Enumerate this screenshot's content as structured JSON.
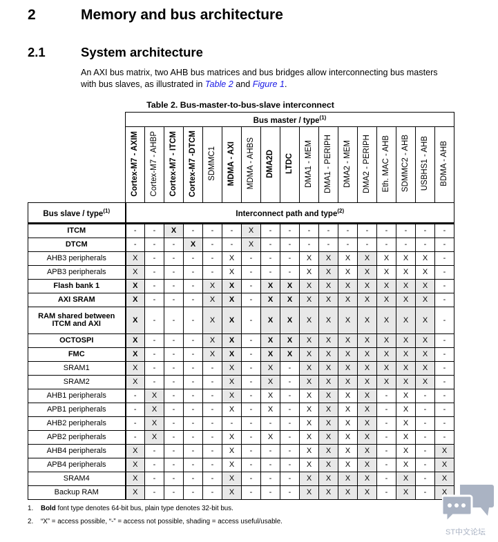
{
  "section": {
    "number": "2",
    "title": "Memory and bus architecture"
  },
  "subsection": {
    "number": "2.1",
    "title": "System architecture"
  },
  "paragraph": {
    "text_before": "An AXI bus matrix, two AHB bus matrices and bus bridges allow interconnecting bus masters with bus slaves, as illustrated in ",
    "link1": "Table 2",
    "text_mid": " and ",
    "link2": "Figure 1",
    "text_after": "."
  },
  "table": {
    "caption": "Table 2. Bus-master-to-bus-slave interconnect",
    "master_header": "Bus master / type",
    "master_header_note": "(1)",
    "slave_header": "Bus slave / type",
    "slave_header_note": "(1)",
    "path_header": "Interconnect path and type",
    "path_header_note": "(2)",
    "shade_color": "#e8e8e8",
    "masters": [
      {
        "label": "Cortex-M7 - AXIM",
        "bold": true
      },
      {
        "label": "Cortex-M7 - AHBP",
        "bold": false
      },
      {
        "label": "Cortex-M7 - ITCM",
        "bold": true
      },
      {
        "label": "Cortex-M7 -DTCM",
        "bold": true
      },
      {
        "label": "SDMMC1",
        "bold": false
      },
      {
        "label": "MDMA - AXI",
        "bold": true
      },
      {
        "label": "MDMA - AHBS",
        "bold": false
      },
      {
        "label": "DMA2D",
        "bold": true
      },
      {
        "label": "LTDC",
        "bold": true
      },
      {
        "label": "DMA1 - MEM",
        "bold": false
      },
      {
        "label": "DMA1 - PERIPH",
        "bold": false
      },
      {
        "label": "DMA2 - MEM",
        "bold": false
      },
      {
        "label": "DMA2 - PERIPH",
        "bold": false
      },
      {
        "label": "Eth. MAC - AHB",
        "bold": false
      },
      {
        "label": "SDMMC2 - AHB",
        "bold": false
      },
      {
        "label": "USBHS1 - AHB",
        "bold": false
      },
      {
        "label": "BDMA - AHB",
        "bold": false
      }
    ],
    "rows": [
      {
        "slave": "ITCM",
        "bold": true,
        "cells": [
          "-",
          "-",
          "X",
          "-",
          "-",
          "-",
          "X",
          "-",
          "-",
          "-",
          "-",
          "-",
          "-",
          "-",
          "-",
          "-",
          "-"
        ],
        "shaded": [
          2,
          6
        ]
      },
      {
        "slave": "DTCM",
        "bold": true,
        "cells": [
          "-",
          "-",
          "-",
          "X",
          "-",
          "-",
          "X",
          "-",
          "-",
          "-",
          "-",
          "-",
          "-",
          "-",
          "-",
          "-",
          "-"
        ],
        "shaded": [
          3,
          6
        ]
      },
      {
        "slave": "AHB3 peripherals",
        "bold": false,
        "cells": [
          "X",
          "-",
          "-",
          "-",
          "-",
          "X",
          "-",
          "-",
          "-",
          "X",
          "X",
          "X",
          "X",
          "X",
          "X",
          "X",
          "-"
        ],
        "shaded": [
          0,
          10,
          12
        ]
      },
      {
        "slave": "APB3 peripherals",
        "bold": false,
        "cells": [
          "X",
          "-",
          "-",
          "-",
          "-",
          "X",
          "-",
          "-",
          "-",
          "X",
          "X",
          "X",
          "X",
          "X",
          "X",
          "X",
          "-"
        ],
        "shaded": [
          0,
          10,
          12
        ]
      },
      {
        "slave": "Flash bank 1",
        "bold": true,
        "cells": [
          "X",
          "-",
          "-",
          "-",
          "X",
          "X",
          "-",
          "X",
          "X",
          "X",
          "X",
          "X",
          "X",
          "X",
          "X",
          "X",
          "-"
        ],
        "shaded": [
          0,
          4,
          5,
          7,
          8,
          9,
          10,
          11,
          12,
          13,
          14,
          15
        ]
      },
      {
        "slave": "AXI SRAM",
        "bold": true,
        "cells": [
          "X",
          "-",
          "-",
          "-",
          "X",
          "X",
          "-",
          "X",
          "X",
          "X",
          "X",
          "X",
          "X",
          "X",
          "X",
          "X",
          "-"
        ],
        "shaded": [
          0,
          4,
          5,
          7,
          8,
          9,
          10,
          11,
          12,
          13,
          14,
          15
        ]
      },
      {
        "slave": "RAM shared between ITCM and AXI",
        "bold": true,
        "tall": true,
        "cells": [
          "X",
          "-",
          "-",
          "-",
          "X",
          "X",
          "-",
          "X",
          "X",
          "X",
          "X",
          "X",
          "X",
          "X",
          "X",
          "X",
          "-"
        ],
        "shaded": [
          0,
          4,
          5,
          7,
          8,
          9,
          10,
          11,
          12,
          13,
          14,
          15
        ]
      },
      {
        "slave": "OCTOSPI",
        "bold": true,
        "cells": [
          "X",
          "-",
          "-",
          "-",
          "X",
          "X",
          "-",
          "X",
          "X",
          "X",
          "X",
          "X",
          "X",
          "X",
          "X",
          "X",
          "-"
        ],
        "shaded": [
          0,
          4,
          5,
          7,
          8,
          9,
          10,
          11,
          12,
          13,
          14,
          15
        ]
      },
      {
        "slave": "FMC",
        "bold": true,
        "cells": [
          "X",
          "-",
          "-",
          "-",
          "X",
          "X",
          "-",
          "X",
          "X",
          "X",
          "X",
          "X",
          "X",
          "X",
          "X",
          "X",
          "-"
        ],
        "shaded": [
          0,
          4,
          5,
          7,
          8,
          9,
          10,
          11,
          12,
          13,
          14,
          15
        ]
      },
      {
        "slave": "SRAM1",
        "bold": false,
        "cells": [
          "X",
          "-",
          "-",
          "-",
          "-",
          "X",
          "-",
          "X",
          "-",
          "X",
          "X",
          "X",
          "X",
          "X",
          "X",
          "X",
          "-"
        ],
        "shaded": [
          0,
          5,
          7,
          9,
          10,
          11,
          12,
          13,
          14,
          15
        ]
      },
      {
        "slave": "SRAM2",
        "bold": false,
        "cells": [
          "X",
          "-",
          "-",
          "-",
          "-",
          "X",
          "-",
          "X",
          "-",
          "X",
          "X",
          "X",
          "X",
          "X",
          "X",
          "X",
          "-"
        ],
        "shaded": [
          0,
          5,
          7,
          9,
          10,
          11,
          12,
          13,
          14,
          15
        ]
      },
      {
        "slave": "AHB1 peripherals",
        "bold": false,
        "cells": [
          "-",
          "X",
          "-",
          "-",
          "-",
          "X",
          "-",
          "X",
          "-",
          "X",
          "X",
          "X",
          "X",
          "-",
          "X",
          "-",
          "-"
        ],
        "shaded": [
          1,
          5,
          10,
          12
        ]
      },
      {
        "slave": "APB1 peripherals",
        "bold": false,
        "cells": [
          "-",
          "X",
          "-",
          "-",
          "-",
          "X",
          "-",
          "X",
          "-",
          "X",
          "X",
          "X",
          "X",
          "-",
          "X",
          "-",
          "-"
        ],
        "shaded": [
          1,
          10,
          12
        ]
      },
      {
        "slave": "AHB2 peripherals",
        "bold": false,
        "cells": [
          "-",
          "X",
          "-",
          "-",
          "-",
          "-",
          "-",
          "-",
          "-",
          "X",
          "X",
          "X",
          "X",
          "-",
          "X",
          "-",
          "-"
        ],
        "shaded": [
          1,
          10,
          12
        ]
      },
      {
        "slave": "APB2 peripherals",
        "bold": false,
        "cells": [
          "-",
          "X",
          "-",
          "-",
          "-",
          "X",
          "-",
          "X",
          "-",
          "X",
          "X",
          "X",
          "X",
          "-",
          "X",
          "-",
          "-"
        ],
        "shaded": [
          1,
          10,
          12
        ]
      },
      {
        "slave": "AHB4 peripherals",
        "bold": false,
        "cells": [
          "X",
          "-",
          "-",
          "-",
          "-",
          "X",
          "-",
          "-",
          "-",
          "X",
          "X",
          "X",
          "X",
          "-",
          "X",
          "-",
          "X"
        ],
        "shaded": [
          0,
          10,
          12,
          16
        ]
      },
      {
        "slave": "APB4 peripherals",
        "bold": false,
        "cells": [
          "X",
          "-",
          "-",
          "-",
          "-",
          "X",
          "-",
          "-",
          "-",
          "X",
          "X",
          "X",
          "X",
          "-",
          "X",
          "-",
          "X"
        ],
        "shaded": [
          0,
          10,
          12,
          16
        ]
      },
      {
        "slave": "SRAM4",
        "bold": false,
        "cells": [
          "X",
          "-",
          "-",
          "-",
          "-",
          "X",
          "-",
          "-",
          "-",
          "X",
          "X",
          "X",
          "X",
          "-",
          "X",
          "-",
          "X"
        ],
        "shaded": [
          0,
          5,
          9,
          10,
          11,
          12,
          14,
          16
        ]
      },
      {
        "slave": "Backup RAM",
        "bold": false,
        "cells": [
          "X",
          "-",
          "-",
          "-",
          "-",
          "X",
          "-",
          "-",
          "-",
          "X",
          "X",
          "X",
          "X",
          "-",
          "X",
          "-",
          "X"
        ],
        "shaded": [
          0,
          5,
          9,
          10,
          11,
          12,
          14,
          16
        ]
      }
    ]
  },
  "notes": [
    {
      "num": "1.",
      "bold_word": "Bold",
      "text": " font type denotes 64-bit bus, plain type denotes 32-bit bus."
    },
    {
      "num": "2.",
      "bold_word": "",
      "text": "“X” = access possible, “-” = access not possible, shading = access useful/usable."
    }
  ],
  "watermark": {
    "text": "ST中文论坛",
    "icon": "chat-bubbles-icon",
    "color": "#aab3c3"
  }
}
